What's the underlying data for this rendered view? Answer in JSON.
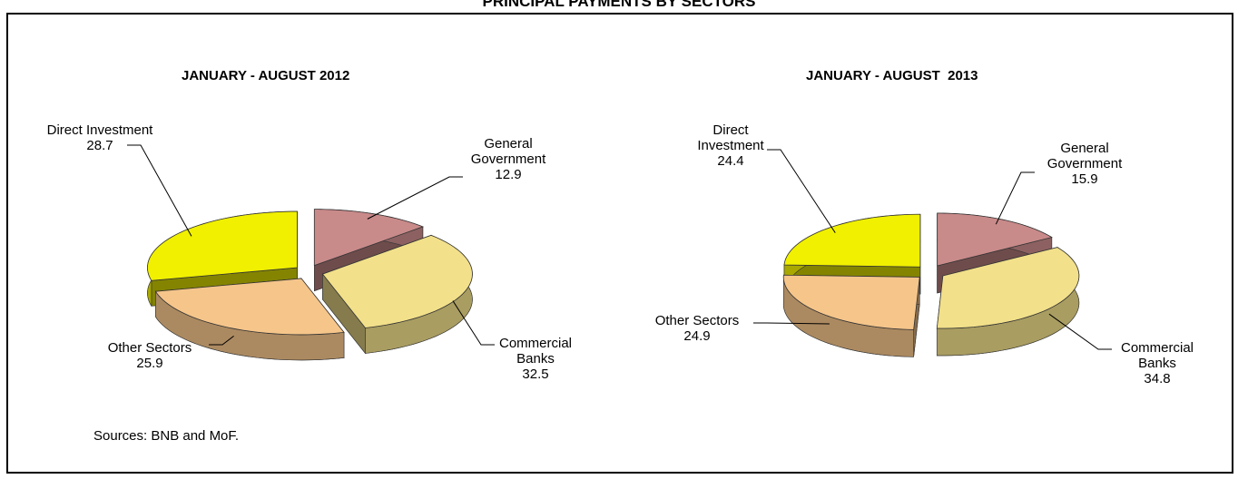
{
  "title": "PRINCIPAL PAYMENTS BY SECTORS",
  "source": "Sources: BNB and MoF.",
  "chart_data": [
    {
      "type": "pie",
      "title": "JANUARY - AUGUST 2012",
      "categories": [
        "General Government",
        "Commercial Banks",
        "Other Sectors",
        "Direct Investment"
      ],
      "values": [
        12.9,
        32.5,
        25.9,
        28.7
      ],
      "colors": [
        "#c98a8a",
        "#f2e08a",
        "#f5c58a",
        "#f0f000"
      ]
    },
    {
      "type": "pie",
      "title": "JANUARY - AUGUST  2013",
      "categories": [
        "General Government",
        "Commercial Banks",
        "Other Sectors",
        "Direct Investment"
      ],
      "values": [
        15.9,
        34.8,
        24.9,
        24.4
      ],
      "colors": [
        "#c98a8a",
        "#f2e08a",
        "#f5c58a",
        "#f0f000"
      ]
    }
  ]
}
